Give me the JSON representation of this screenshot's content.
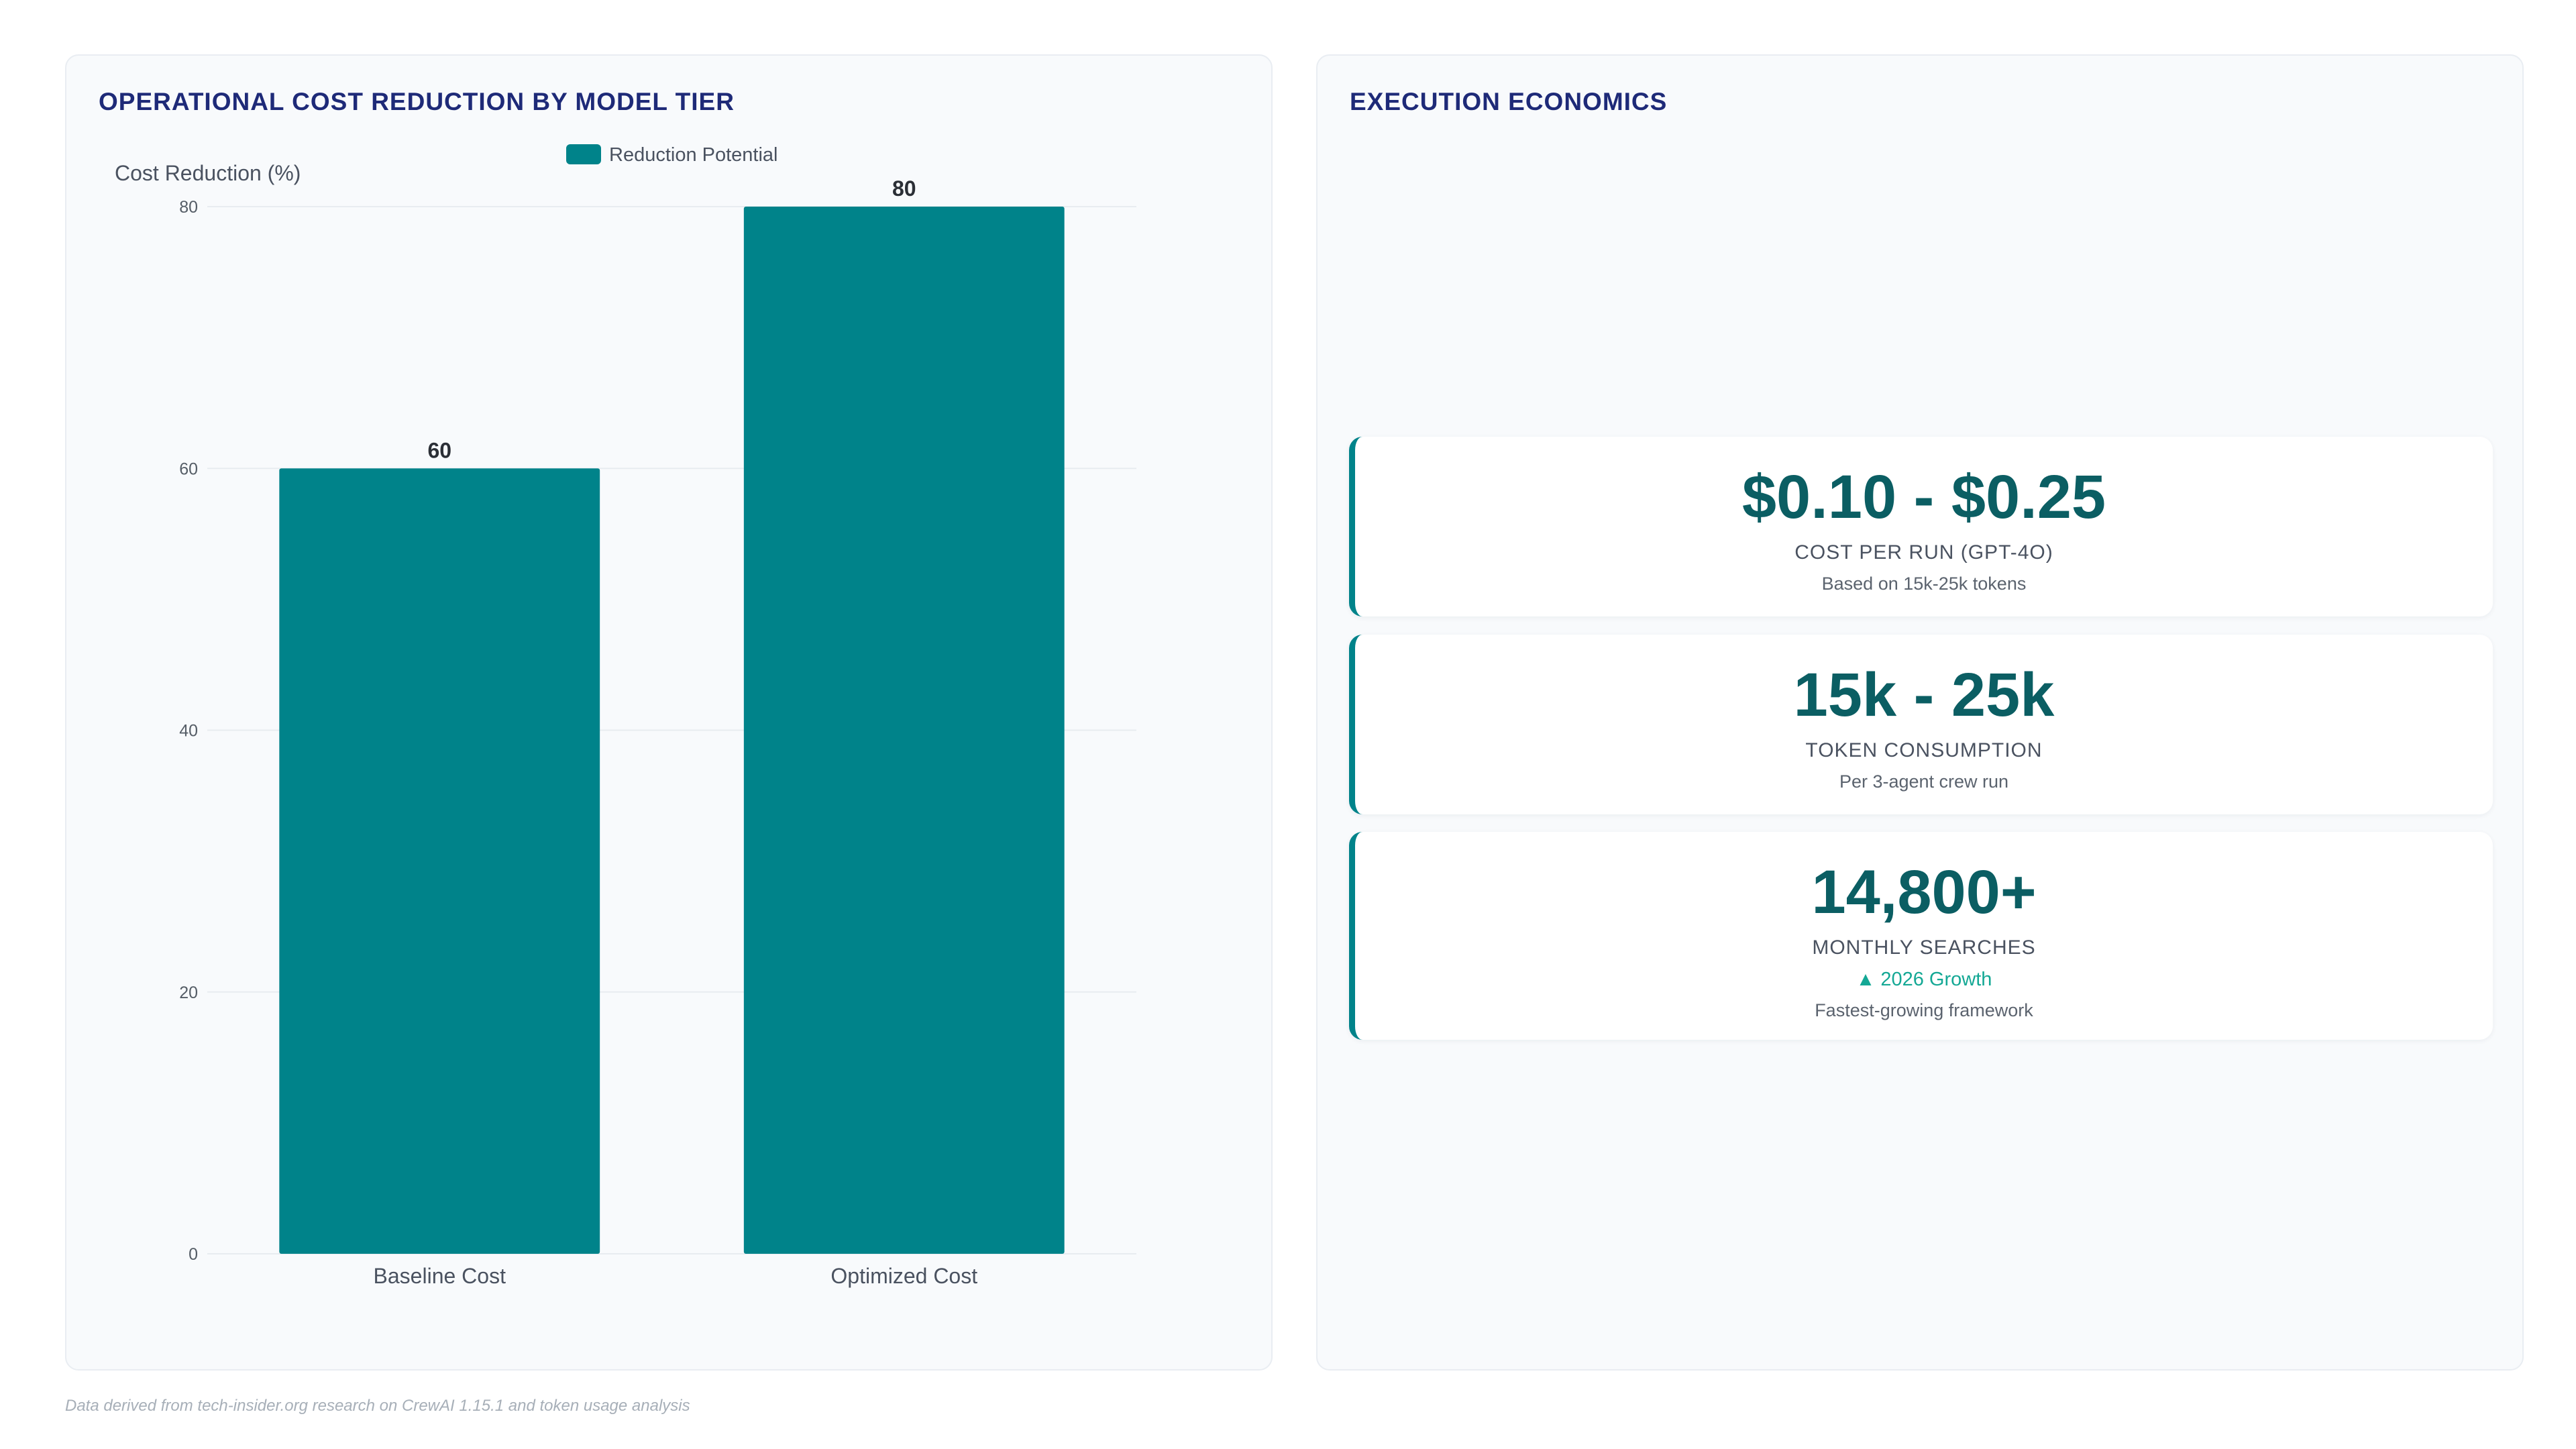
{
  "left_panel": {
    "title": "OPERATIONAL COST REDUCTION BY MODEL TIER"
  },
  "chart_data": {
    "type": "bar",
    "categories": [
      "Baseline Cost",
      "Optimized Cost"
    ],
    "series": [
      {
        "name": "Reduction Potential",
        "values": [
          60,
          80
        ],
        "color": "#00838a"
      }
    ],
    "ylabel": "Cost Reduction (%)",
    "xlabel": "",
    "ylim": [
      0,
      80
    ],
    "yticks": [
      0,
      20,
      40,
      60,
      80
    ],
    "data_labels": [
      "60",
      "80"
    ],
    "grid": true,
    "legend_position": "top-center"
  },
  "right_panel": {
    "title": "EXECUTION ECONOMICS",
    "cards": [
      {
        "value": "$0.10 - $0.25",
        "label": "COST PER RUN (GPT-4O)",
        "subtext": "Based on 15k-25k tokens"
      },
      {
        "value": "15k - 25k",
        "label": "TOKEN CONSUMPTION",
        "subtext": "Per 3-agent crew run"
      },
      {
        "value": "14,800+",
        "label": "MONTHLY SEARCHES",
        "trend": "▲ 2026 Growth",
        "subtext": "Fastest-growing framework"
      }
    ]
  },
  "footer": {
    "note": "Data derived from tech-insider.org research on CrewAI 1.15.1 and token usage analysis"
  }
}
